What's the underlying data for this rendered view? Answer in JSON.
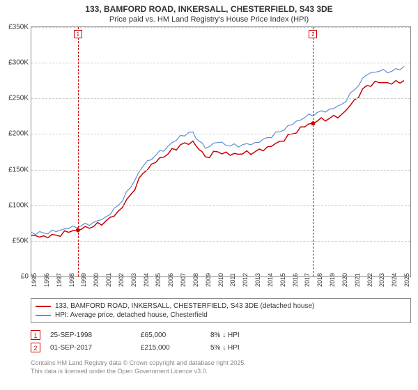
{
  "title": "133, BAMFORD ROAD, INKERSALL, CHESTERFIELD, S43 3DE",
  "subtitle": "Price paid vs. HM Land Registry's House Price Index (HPI)",
  "chart": {
    "type": "line",
    "ylim": [
      0,
      350000
    ],
    "ytick_step": 50000,
    "yticks": [
      "£0",
      "£50K",
      "£100K",
      "£150K",
      "£200K",
      "£250K",
      "£300K",
      "£350K"
    ],
    "xlim": [
      1995,
      2025.5
    ],
    "xticks": [
      "1995",
      "1996",
      "1997",
      "1998",
      "1999",
      "2000",
      "2001",
      "2002",
      "2003",
      "2004",
      "2005",
      "2006",
      "2007",
      "2008",
      "2009",
      "2010",
      "2011",
      "2012",
      "2013",
      "2014",
      "2015",
      "2016",
      "2017",
      "2018",
      "2019",
      "2020",
      "2021",
      "2022",
      "2023",
      "2024",
      "2025"
    ],
    "background_color": "#ffffff",
    "grid_color": "#cccccc",
    "border_color": "#888888",
    "series": [
      {
        "name": "property",
        "label": "133, BAMFORD ROAD, INKERSALL, CHESTERFIELD, S43 3DE (detached house)",
        "color": "#cc0000",
        "line_width": 1.5,
        "data": [
          [
            1995,
            58000
          ],
          [
            1996,
            57000
          ],
          [
            1997,
            58000
          ],
          [
            1998,
            62000
          ],
          [
            1998.75,
            65000
          ],
          [
            1999,
            66000
          ],
          [
            2000,
            70000
          ],
          [
            2001,
            78000
          ],
          [
            2002,
            92000
          ],
          [
            2003,
            115000
          ],
          [
            2004,
            145000
          ],
          [
            2005,
            160000
          ],
          [
            2006,
            172000
          ],
          [
            2007,
            185000
          ],
          [
            2008,
            190000
          ],
          [
            2008.5,
            178000
          ],
          [
            2009,
            168000
          ],
          [
            2010,
            175000
          ],
          [
            2011,
            170000
          ],
          [
            2012,
            172000
          ],
          [
            2013,
            175000
          ],
          [
            2014,
            182000
          ],
          [
            2015,
            190000
          ],
          [
            2016,
            200000
          ],
          [
            2017,
            210000
          ],
          [
            2017.7,
            215000
          ],
          [
            2018,
            218000
          ],
          [
            2019,
            222000
          ],
          [
            2020,
            228000
          ],
          [
            2021,
            248000
          ],
          [
            2022,
            268000
          ],
          [
            2023,
            272000
          ],
          [
            2024,
            270000
          ],
          [
            2025,
            275000
          ]
        ]
      },
      {
        "name": "hpi",
        "label": "HPI: Average price, detached house, Chesterfield",
        "color": "#5b8fd6",
        "line_width": 1.2,
        "data": [
          [
            1995,
            62000
          ],
          [
            1996,
            61000
          ],
          [
            1997,
            63000
          ],
          [
            1998,
            67000
          ],
          [
            1999,
            71000
          ],
          [
            2000,
            76000
          ],
          [
            2001,
            84000
          ],
          [
            2002,
            100000
          ],
          [
            2003,
            125000
          ],
          [
            2004,
            155000
          ],
          [
            2005,
            170000
          ],
          [
            2006,
            183000
          ],
          [
            2007,
            198000
          ],
          [
            2008,
            203000
          ],
          [
            2008.5,
            190000
          ],
          [
            2009,
            180000
          ],
          [
            2010,
            188000
          ],
          [
            2011,
            183000
          ],
          [
            2012,
            185000
          ],
          [
            2013,
            188000
          ],
          [
            2014,
            195000
          ],
          [
            2015,
            203000
          ],
          [
            2016,
            213000
          ],
          [
            2017,
            223000
          ],
          [
            2018,
            230000
          ],
          [
            2019,
            235000
          ],
          [
            2020,
            242000
          ],
          [
            2021,
            262000
          ],
          [
            2022,
            283000
          ],
          [
            2023,
            288000
          ],
          [
            2024,
            288000
          ],
          [
            2025,
            295000
          ]
        ]
      }
    ],
    "markers": [
      {
        "index": 1,
        "x": 1998.75,
        "y": 65000,
        "color": "#cc0000"
      },
      {
        "index": 2,
        "x": 2017.67,
        "y": 215000,
        "color": "#cc0000"
      }
    ]
  },
  "legend": {
    "items": [
      {
        "color": "#cc0000",
        "label": "133, BAMFORD ROAD, INKERSALL, CHESTERFIELD, S43 3DE (detached house)"
      },
      {
        "color": "#5b8fd6",
        "label": "HPI: Average price, detached house, Chesterfield"
      }
    ]
  },
  "sales": [
    {
      "marker": "1",
      "date": "25-SEP-1998",
      "price": "£65,000",
      "delta": "8% ↓ HPI"
    },
    {
      "marker": "2",
      "date": "01-SEP-2017",
      "price": "£215,000",
      "delta": "5% ↓ HPI"
    }
  ],
  "footer_line1": "Contains HM Land Registry data © Crown copyright and database right 2025.",
  "footer_line2": "This data is licensed under the Open Government Licence v3.0."
}
